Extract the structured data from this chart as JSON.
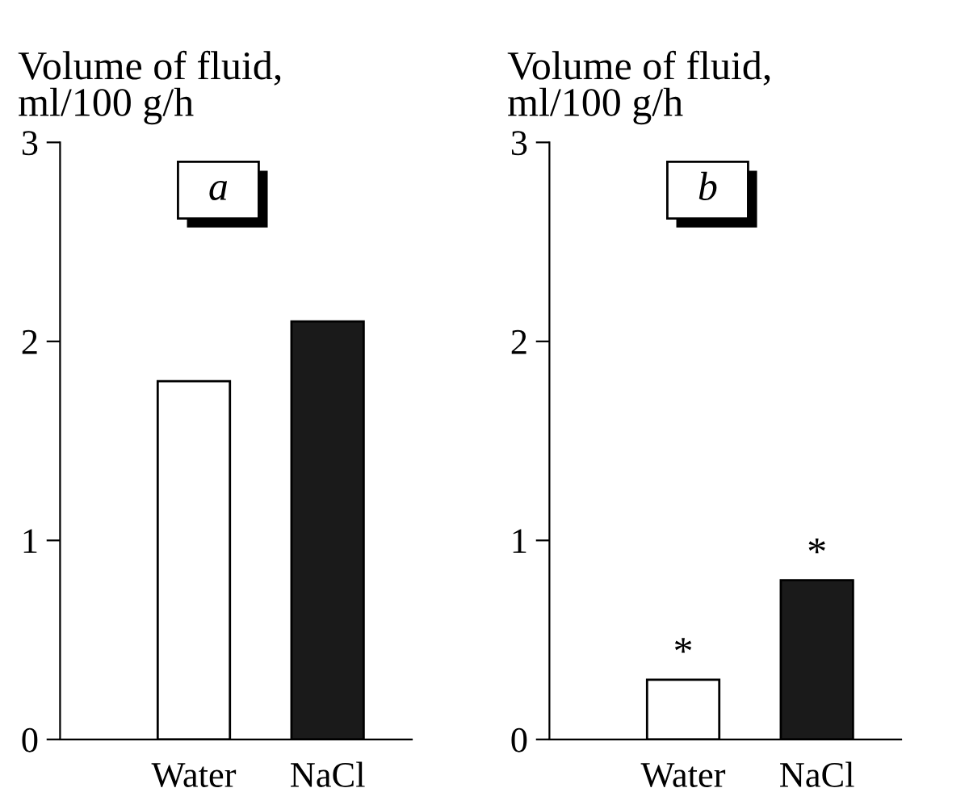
{
  "chart_data": [
    {
      "type": "bar",
      "ylabel": "Volume of fluid,\nml/100 g/h",
      "categories": [
        "Water",
        "NaCl"
      ],
      "values": [
        1.8,
        2.1
      ],
      "colors": [
        "#ffffff",
        "#1a1a1a"
      ],
      "ylim": [
        0,
        3
      ],
      "yticks": [
        0,
        1,
        2,
        3
      ],
      "grid": false,
      "legend": false,
      "annotations": [
        "a"
      ]
    },
    {
      "type": "bar",
      "ylabel": "Volume of fluid,\nml/100 g/h",
      "categories": [
        "Water",
        "NaCl"
      ],
      "values": [
        0.3,
        0.8
      ],
      "colors": [
        "#ffffff",
        "#1a1a1a"
      ],
      "ylim": [
        0,
        3
      ],
      "yticks": [
        0,
        1,
        2,
        3
      ],
      "grid": false,
      "legend": false,
      "annotations": [
        "b",
        {
          "text": "*",
          "x": "Water",
          "y": 0.3
        },
        {
          "text": "*",
          "x": "NaCl",
          "y": 0.8
        }
      ]
    }
  ]
}
